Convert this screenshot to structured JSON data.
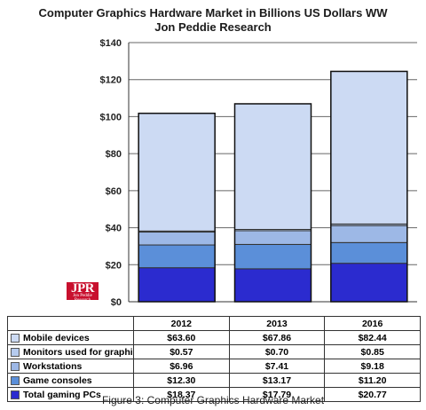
{
  "chart_data": {
    "type": "bar",
    "stacked": true,
    "title": "Computer Graphics Hardware Market in Billions US Dollars WW",
    "subtitle": "Jon Peddie Research",
    "categories": [
      "2012",
      "2013",
      "2016"
    ],
    "ylim": [
      0,
      140
    ],
    "yticks": [
      "$0",
      "$20",
      "$40",
      "$60",
      "$80",
      "$100",
      "$120",
      "$140"
    ],
    "grid": true,
    "series": [
      {
        "name": "Total gaming PCs",
        "values": [
          18.37,
          17.79,
          20.77
        ],
        "labels": [
          "$18.37",
          "$17.79",
          "$20.77"
        ],
        "color": "#2b2bcf"
      },
      {
        "name": "Game consoles",
        "values": [
          12.3,
          13.17,
          11.2
        ],
        "labels": [
          "$12.30",
          "$13.17",
          "$11.20"
        ],
        "color": "#5b8fd9"
      },
      {
        "name": "Workstations",
        "values": [
          6.96,
          7.41,
          9.18
        ],
        "labels": [
          "$6.96",
          "$7.41",
          "$9.18"
        ],
        "color": "#9db8e6"
      },
      {
        "name": "Monitors used for graphics",
        "values": [
          0.57,
          0.7,
          0.85
        ],
        "labels": [
          "$0.57",
          "$0.70",
          "$0.85"
        ],
        "color": "#b6cbee"
      },
      {
        "name": "Mobile devices",
        "values": [
          63.6,
          67.86,
          82.44
        ],
        "labels": [
          "$63.60",
          "$67.86",
          "$82.44"
        ],
        "color": "#ccdaf3"
      }
    ]
  },
  "logo": {
    "big": "JPR",
    "small": "Jon Peddie Research"
  },
  "caption": "Figure 3: Computer Graphics Hardware Market"
}
